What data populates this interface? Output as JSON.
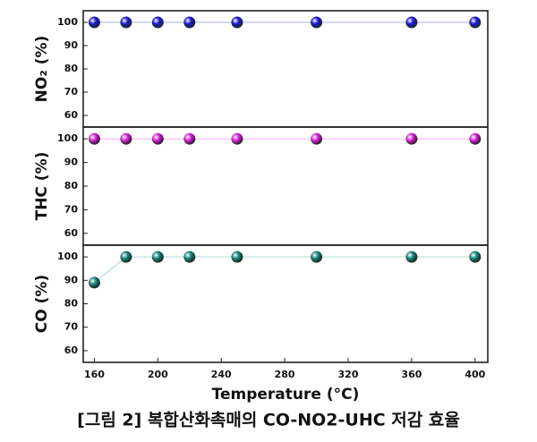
{
  "chart_data": [
    {
      "type": "scatter",
      "ylabel": "NO₂ (%)",
      "x": [
        160,
        180,
        200,
        220,
        250,
        300,
        360,
        400
      ],
      "series": [
        {
          "color": "#1a1adc",
          "values": [
            100,
            100,
            100,
            100,
            100,
            100,
            100,
            100
          ]
        }
      ],
      "xlim": [
        153,
        408
      ],
      "ylim": [
        55,
        105
      ],
      "yticks": [
        60,
        70,
        80,
        90,
        100
      ]
    },
    {
      "type": "scatter",
      "ylabel": "THC (%)",
      "x": [
        160,
        180,
        200,
        220,
        250,
        300,
        360,
        400
      ],
      "series": [
        {
          "color": "#e020e0",
          "values": [
            100,
            100,
            100,
            100,
            100,
            100,
            100,
            100
          ]
        }
      ],
      "xlim": [
        153,
        408
      ],
      "ylim": [
        55,
        105
      ],
      "yticks": [
        60,
        70,
        80,
        90,
        100
      ]
    },
    {
      "type": "scatter",
      "ylabel": "CO (%)",
      "xlabel": "Temperature (°C)",
      "x": [
        160,
        180,
        200,
        220,
        250,
        300,
        360,
        400
      ],
      "series": [
        {
          "color": "#138a80",
          "values": [
            89,
            100,
            100,
            100,
            100,
            100,
            100,
            100
          ]
        }
      ],
      "xlim": [
        153,
        408
      ],
      "xticks": [
        160,
        200,
        240,
        280,
        320,
        360,
        400
      ],
      "ylim": [
        55,
        105
      ],
      "yticks": [
        60,
        70,
        80,
        90,
        100
      ]
    }
  ],
  "caption": "[그림 2] 복합산화촉매의 CO-NO2-UHC 저감 효율"
}
